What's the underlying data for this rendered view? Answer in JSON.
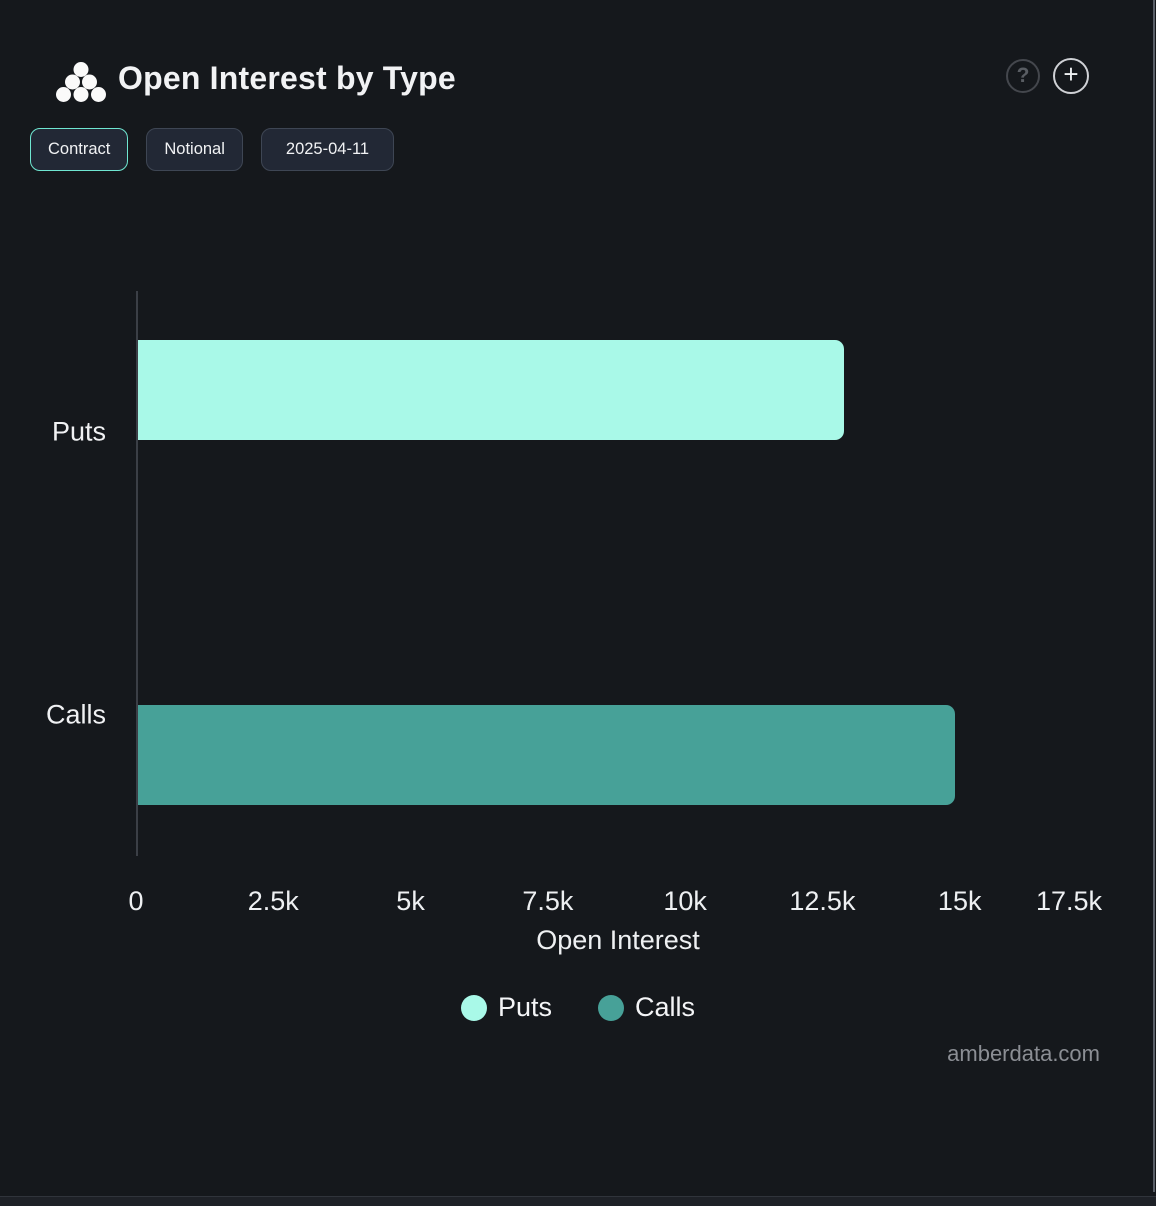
{
  "header": {
    "title": "Open Interest by Type",
    "help_icon": "?",
    "add_icon": "+"
  },
  "toolbar": {
    "buttons": [
      {
        "label": "Contract",
        "active": true
      },
      {
        "label": "Notional",
        "active": false
      },
      {
        "label": "2025-04-11",
        "active": false
      }
    ]
  },
  "chart_data": {
    "type": "bar",
    "orientation": "horizontal",
    "title": "Open Interest by Type",
    "categories": [
      "Puts",
      "Calls"
    ],
    "values": [
      12850,
      14870
    ],
    "colors": [
      "#a9f9e8",
      "#47a198"
    ],
    "xlabel": "Open Interest",
    "ylabel": "",
    "xlim": [
      0,
      17500
    ],
    "x_tick_values": [
      0,
      2500,
      5000,
      7500,
      10000,
      12500,
      15000,
      17500
    ],
    "x_tick_labels": [
      "0",
      "2.5k",
      "5k",
      "7.5k",
      "10k",
      "12.5k",
      "15k",
      "17.5k"
    ],
    "grid": false,
    "legend": {
      "position": "bottom",
      "items": [
        {
          "label": "Puts",
          "color": "#a9f9e8"
        },
        {
          "label": "Calls",
          "color": "#47a198"
        }
      ]
    }
  },
  "watermark": "amberdata.com",
  "colors": {
    "background": "#15181c",
    "accent": "#6fe6d1",
    "puts": "#a9f9e8",
    "calls": "#47a198"
  }
}
